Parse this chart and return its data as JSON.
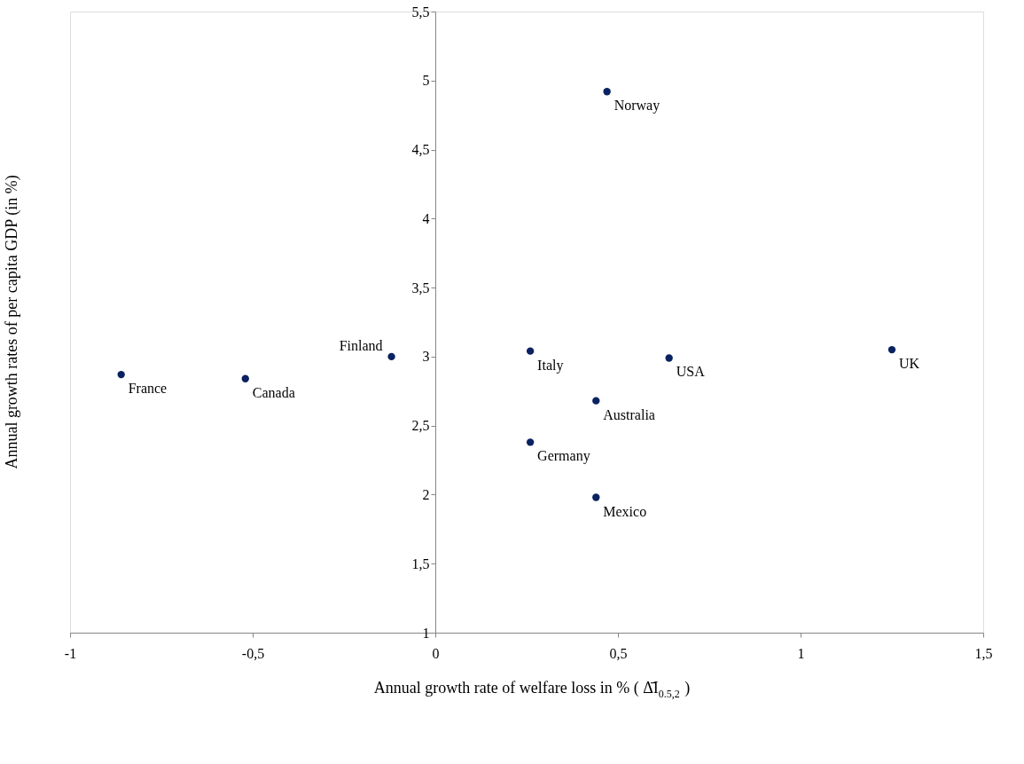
{
  "chart_data": {
    "type": "scatter",
    "xlabel": "Annual growth rate of welfare loss in % ( Δ̄I$_{0.5,2}$ )",
    "ylabel": "Annual growth rates of per capita GDP (in %)",
    "x": [
      -0.86,
      -0.52,
      -0.12,
      0.26,
      0.26,
      0.44,
      0.44,
      0.47,
      0.64,
      1.25
    ],
    "series": [
      {
        "color": "#0b2260",
        "values": [
          2.87,
          2.84,
          3.0,
          3.04,
          2.38,
          2.68,
          1.98,
          4.92,
          2.99,
          3.05
        ]
      }
    ],
    "value_labels": [
      "France",
      "Canada",
      "Finland",
      "Italy",
      "Germany",
      "Australia",
      "Mexico",
      "Norway",
      "USA",
      "UK"
    ],
    "xlim": [
      -1,
      1.5
    ],
    "xticks": [
      -1,
      {
        "value": -0.5,
        "label": "-0,5"
      },
      0,
      {
        "value": 0.5,
        "label": "0,5"
      },
      1,
      {
        "value": 1.5,
        "label": "1,5"
      }
    ],
    "ylim": [
      1,
      5.5
    ],
    "yticks": [
      1,
      {
        "value": 1.5,
        "label": "1,5"
      },
      2,
      {
        "value": 2.5,
        "label": "2,5"
      },
      3,
      {
        "value": 3.5,
        "label": "3,5"
      },
      4,
      {
        "value": 4.5,
        "label": "4,5"
      },
      5,
      {
        "value": 5.5,
        "label": "5,5"
      }
    ],
    "marker": "circle",
    "grid": false
  }
}
